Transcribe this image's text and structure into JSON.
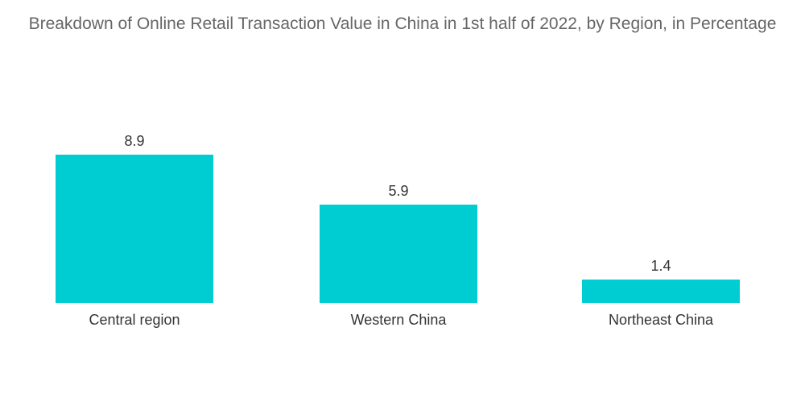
{
  "chart_data": {
    "type": "bar",
    "title": "Breakdown of Online Retail Transaction Value in China in 1st half of 2022, by Region, in Percentage",
    "categories": [
      "Central region",
      "Western China",
      "Northeast China"
    ],
    "values": [
      8.9,
      5.9,
      1.4
    ],
    "value_labels": [
      "8.9",
      "5.9",
      "1.4"
    ],
    "xlabel": "",
    "ylabel": "",
    "ylim": [
      0,
      8.9
    ],
    "grid": false,
    "legend": "none",
    "colors": {
      "bar": "#00CDD1",
      "title": "#666666",
      "label": "#333333"
    }
  }
}
